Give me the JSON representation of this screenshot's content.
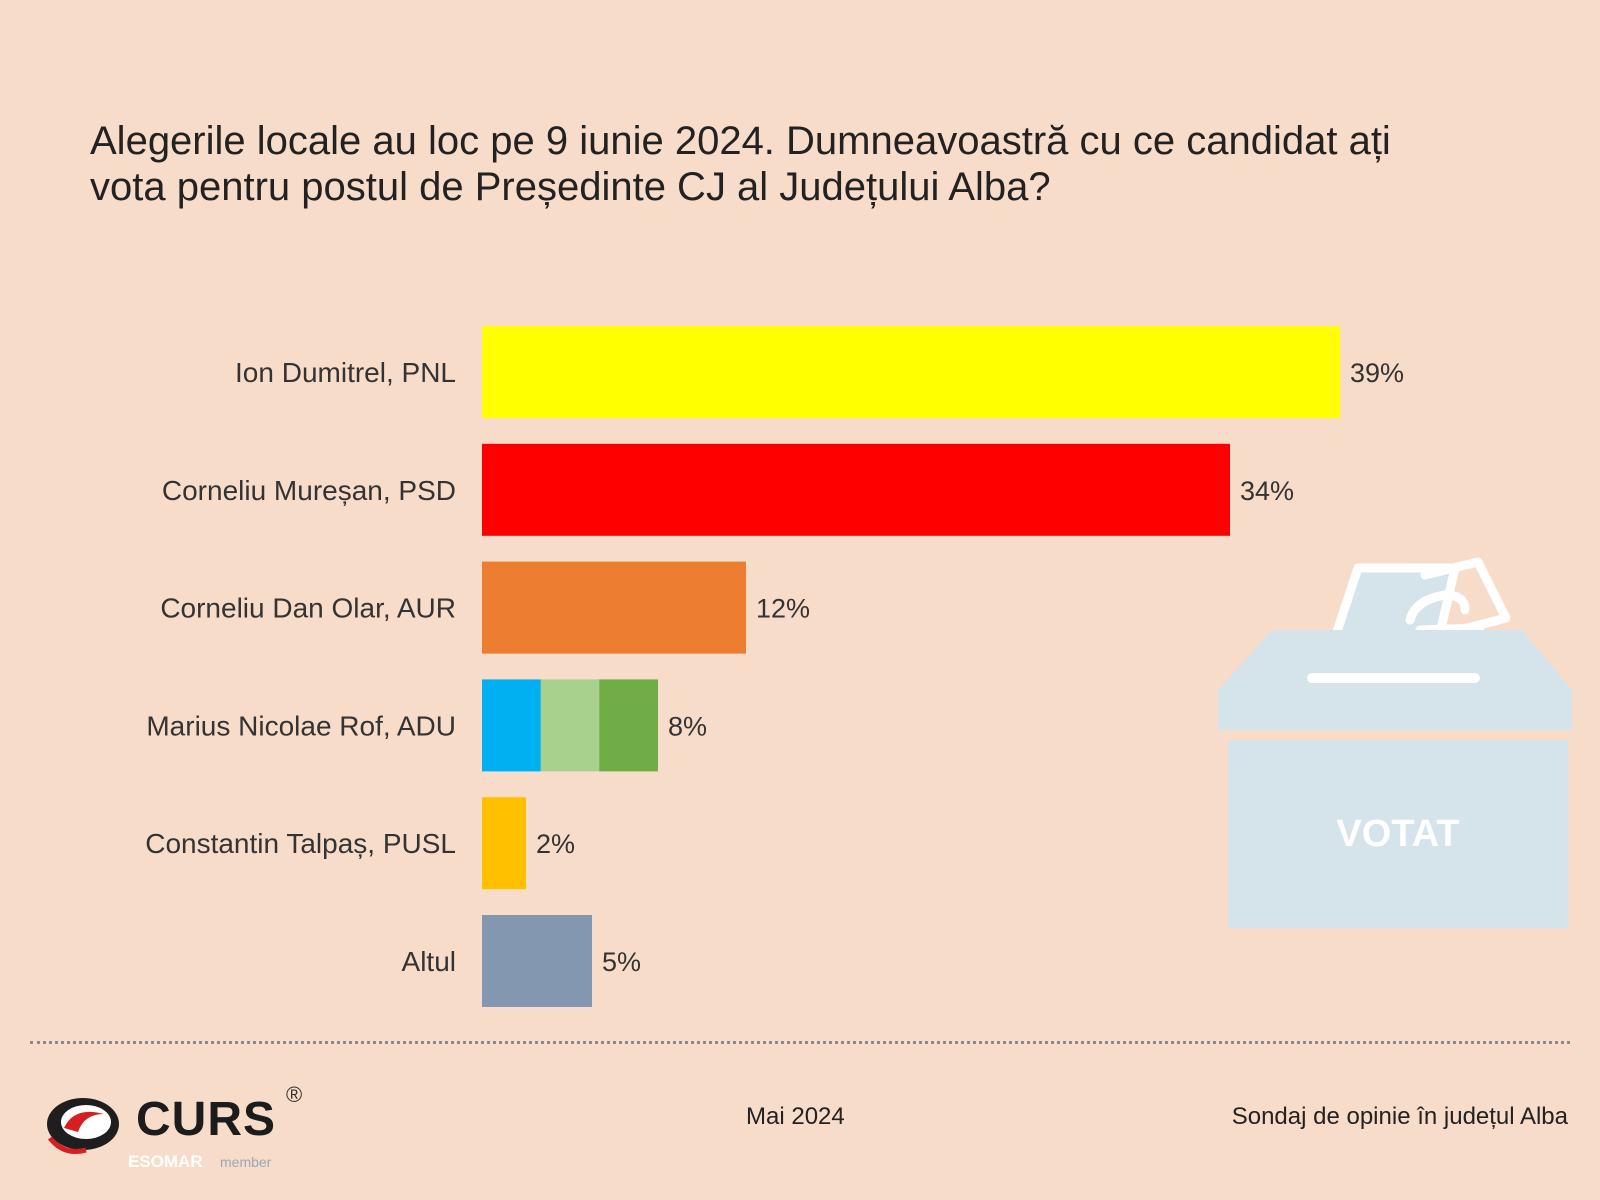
{
  "title_lines": [
    "Alegerile locale au loc pe 9 iunie 2024. Dumneavoastră cu ce candidat ați",
    "vota pentru postul de Președinte CJ al Județului Alba?"
  ],
  "chart_data": {
    "type": "bar",
    "orientation": "horizontal",
    "title": "Alegerile locale au loc pe 9 iunie 2024. Dumneavoastră cu ce candidat ați vota pentru postul de Președinte CJ al Județului Alba?",
    "categories": [
      "Ion Dumitrel, PNL",
      "Corneliu Mureșan, PSD",
      "Corneliu Dan Olar, AUR",
      "Marius Nicolae Rof, ADU",
      "Constantin Talpaș, PUSL",
      "Altul"
    ],
    "values": [
      39,
      34,
      12,
      8,
      2,
      5
    ],
    "value_labels": [
      "39%",
      "34%",
      "12%",
      "8%",
      "2%",
      "5%"
    ],
    "unit": "%",
    "xlim": [
      0,
      39
    ],
    "colors": [
      [
        "#ffff00"
      ],
      [
        "#ff0000"
      ],
      [
        "#ed7d31"
      ],
      [
        "#00b0f0",
        "#a9d18e",
        "#70ad47"
      ],
      [
        "#ffc000"
      ],
      [
        "#8497b0"
      ]
    ],
    "grid": false,
    "legend": "none"
  },
  "ballot_icon": {
    "name": "ballot-box-icon",
    "label": "VOTAT"
  },
  "footer": {
    "brand": "CURS",
    "registered": "®",
    "esomar": "ESOMAR",
    "member": "member",
    "date": "Mai 2024",
    "source": "Sondaj de opinie în județul Alba"
  }
}
